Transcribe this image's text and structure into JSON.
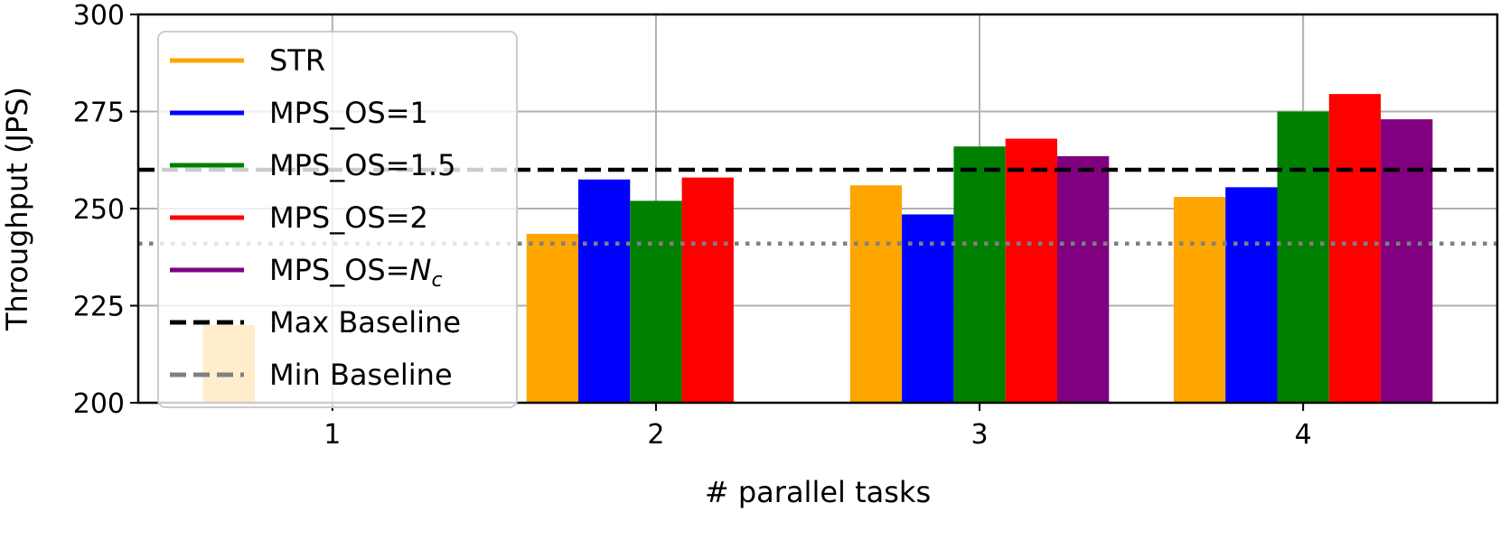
{
  "chart_data": {
    "type": "bar",
    "title": "",
    "xlabel": "# parallel tasks",
    "ylabel": "Throughput (JPS)",
    "ylim": [
      200,
      300
    ],
    "xlim": [
      0.4,
      4.6
    ],
    "yticks": [
      200,
      225,
      250,
      275,
      300
    ],
    "categories": [
      "1",
      "2",
      "3",
      "4"
    ],
    "x": [
      1,
      2,
      3,
      4
    ],
    "grid": true,
    "legend_position": "upper-left",
    "series": [
      {
        "name": "STR",
        "color": "#FFA500",
        "values": [
          220,
          243.5,
          256,
          253
        ]
      },
      {
        "name": "MPS_OS=1",
        "color": "#0000FF",
        "values": [
          null,
          257.5,
          248.5,
          255.5
        ]
      },
      {
        "name": "MPS_OS=1.5",
        "color": "#008000",
        "values": [
          null,
          252,
          266,
          275
        ]
      },
      {
        "name": "MPS_OS=2",
        "color": "#FF0000",
        "values": [
          null,
          258,
          268,
          279.5
        ]
      },
      {
        "name": "MPS_OS=N",
        "name_subscript": "c",
        "color": "#800080",
        "values": [
          null,
          null,
          263.5,
          273
        ]
      }
    ],
    "reference_lines": [
      {
        "name": "Max Baseline",
        "value": 260,
        "color": "#000000",
        "style": "dashed"
      },
      {
        "name": "Min Baseline",
        "value": 241,
        "color": "#808080",
        "style": "dotted",
        "legend_style": "dashed"
      }
    ]
  }
}
